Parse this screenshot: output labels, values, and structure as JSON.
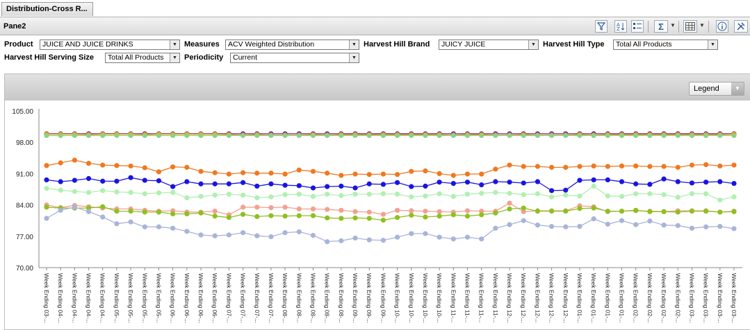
{
  "tab": {
    "title": "Distribution-Cross R..."
  },
  "pane": {
    "title": "Pane2",
    "toolbar": [
      "filter-icon",
      "sort-az-icon",
      "list-select-icon",
      "sum-icon",
      "grid-options-icon",
      "info-icon",
      "settings-tools-icon"
    ]
  },
  "filters": {
    "product": {
      "label": "Product",
      "value": "JUICE AND JUICE DRINKS"
    },
    "measures": {
      "label": "Measures",
      "value": "ACV Weighted Distribution"
    },
    "brand": {
      "label": "Harvest Hill Brand",
      "value": "JUICY JUICE"
    },
    "type": {
      "label": "Harvest Hill Type",
      "value": "Total All Products"
    },
    "serving": {
      "label": "Harvest Hill Serving Size",
      "value": "Total All Products"
    },
    "periodicity": {
      "label": "Periodicity",
      "value": "Current"
    }
  },
  "legend_button": {
    "label": "Legend"
  },
  "chart_data": {
    "type": "line",
    "ylim": [
      70,
      105
    ],
    "yticks": [
      "105.00",
      "98.00",
      "91.00",
      "84.00",
      "77.00",
      "70.00"
    ],
    "grid": false,
    "categories": [
      "Week Ending 03-...",
      "Week Ending 04-...",
      "Week Ending 04-...",
      "Week Ending 04-...",
      "Week Ending 04-...",
      "Week Ending 05-...",
      "Week Ending 05-...",
      "Week Ending 05-...",
      "Week Ending 05-...",
      "Week Ending 06-...",
      "Week Ending 06-...",
      "Week Ending 06-...",
      "Week Ending 06-...",
      "Week Ending 07-...",
      "Week Ending 07-...",
      "Week Ending 07-...",
      "Week Ending 07-...",
      "Week Ending 08-...",
      "Week Ending 08-...",
      "Week Ending 08-...",
      "Week Ending 08-...",
      "Week Ending 08-...",
      "Week Ending 09-...",
      "Week Ending 09-...",
      "Week Ending 09-...",
      "Week Ending 10-...",
      "Week Ending 10-...",
      "Week Ending 10-...",
      "Week Ending 10-...",
      "Week Ending 11-...",
      "Week Ending 11-...",
      "Week Ending 11-...",
      "Week Ending 11-...",
      "Week Ending 12-...",
      "Week Ending 12-...",
      "Week Ending 12-...",
      "Week Ending 12-...",
      "Week Ending 12-...",
      "Week Ending 01-...",
      "Week Ending 01-...",
      "Week Ending 01-...",
      "Week Ending 01-...",
      "Week Ending 02-...",
      "Week Ending 02-...",
      "Week Ending 02-...",
      "Week Ending 02-...",
      "Week Ending 03-...",
      "Week Ending 03-...",
      "Week Ending 03-...",
      "Week Ending 03-..."
    ],
    "series": [
      {
        "color": "#7a2a8a",
        "values": [
          99.9,
          99.9,
          99.9,
          99.9,
          99.9,
          99.9,
          99.9,
          99.9,
          99.9,
          99.9,
          99.9,
          99.9,
          99.9,
          99.9,
          99.9,
          99.9,
          99.9,
          99.9,
          99.9,
          99.9,
          99.9,
          99.9,
          99.9,
          99.9,
          99.9,
          99.9,
          99.9,
          99.9,
          99.9,
          99.9,
          99.9,
          99.9,
          99.9,
          99.9,
          99.9,
          99.9,
          99.9,
          99.9,
          99.9,
          99.9,
          99.9,
          99.9,
          99.9,
          99.9,
          99.9,
          99.9,
          99.9,
          99.9,
          99.9,
          99.9
        ]
      },
      {
        "color": "#e8a000",
        "values": [
          99.8,
          99.8,
          99.8,
          99.7,
          99.8,
          99.8,
          99.8,
          99.7,
          99.8,
          99.8,
          99.8,
          99.8,
          99.8,
          99.7,
          99.6,
          99.7,
          99.6,
          99.6,
          99.6,
          99.7,
          99.6,
          99.7,
          99.7,
          99.7,
          99.7,
          99.7,
          99.7,
          99.7,
          99.7,
          99.6,
          99.7,
          99.7,
          99.6,
          99.6,
          99.7,
          99.6,
          99.6,
          99.6,
          99.7,
          99.6,
          99.7,
          99.7,
          99.7,
          99.7,
          99.7,
          99.7,
          99.7,
          99.7,
          99.7,
          99.8
        ]
      },
      {
        "color": "#8bd08b",
        "values": [
          99.5,
          99.5,
          99.5,
          99.5,
          99.5,
          99.5,
          99.5,
          99.5,
          99.5,
          99.5,
          99.5,
          99.5,
          99.5,
          99.5,
          99.5,
          99.5,
          99.5,
          99.5,
          99.5,
          99.5,
          99.5,
          99.5,
          99.5,
          99.5,
          99.5,
          99.5,
          99.5,
          99.5,
          99.5,
          99.5,
          99.5,
          99.5,
          99.5,
          99.5,
          99.5,
          99.5,
          99.5,
          99.5,
          99.5,
          99.5,
          99.5,
          99.5,
          99.5,
          99.5,
          99.5,
          99.5,
          99.5,
          99.5,
          99.5,
          99.5
        ]
      },
      {
        "color": "#f07820",
        "values": [
          92.8,
          93.4,
          94.0,
          93.3,
          92.9,
          92.8,
          92.7,
          92.3,
          91.4,
          92.5,
          92.4,
          91.5,
          91.2,
          90.9,
          91.2,
          91.1,
          91.1,
          90.9,
          91.8,
          91.5,
          91.1,
          90.6,
          90.9,
          90.8,
          90.9,
          90.8,
          91.5,
          91.6,
          91.0,
          90.6,
          90.9,
          90.9,
          92.0,
          92.9,
          92.6,
          92.6,
          92.4,
          92.4,
          92.6,
          92.7,
          92.6,
          92.7,
          92.7,
          92.6,
          92.6,
          92.4,
          92.9,
          93.0,
          92.7,
          92.9
        ]
      },
      {
        "color": "#1a14e0",
        "values": [
          89.6,
          89.2,
          89.5,
          89.9,
          89.3,
          89.3,
          90.1,
          89.5,
          89.4,
          88.1,
          89.2,
          88.7,
          88.7,
          88.7,
          89.0,
          88.2,
          88.7,
          88.4,
          88.3,
          87.8,
          88.1,
          88.2,
          87.8,
          88.7,
          88.6,
          89.0,
          88.1,
          88.2,
          89.1,
          88.8,
          89.1,
          88.5,
          89.2,
          89.1,
          88.9,
          89.2,
          87.2,
          87.3,
          89.5,
          89.6,
          89.6,
          89.2,
          88.7,
          88.6,
          89.8,
          89.2,
          88.9,
          89.1,
          89.2,
          88.8
        ]
      },
      {
        "color": "#b0f0b0",
        "values": [
          87.7,
          87.3,
          87.0,
          86.8,
          87.2,
          86.9,
          86.8,
          86.5,
          86.7,
          86.8,
          85.6,
          85.9,
          86.2,
          86.4,
          86.2,
          85.6,
          85.8,
          86.3,
          86.4,
          85.9,
          86.4,
          86.1,
          86.4,
          86.4,
          86.5,
          86.4,
          85.8,
          86.0,
          86.5,
          85.9,
          86.4,
          86.6,
          86.8,
          86.6,
          86.3,
          86.5,
          85.8,
          86.2,
          86.0,
          88.2,
          86.0,
          85.9,
          86.5,
          86.5,
          86.3,
          85.7,
          86.5,
          86.5,
          85.1,
          85.8
        ]
      },
      {
        "color": "#f4a090",
        "values": [
          84.0,
          83.4,
          83.9,
          83.6,
          83.3,
          83.1,
          83.1,
          82.8,
          82.6,
          82.7,
          82.4,
          82.4,
          82.6,
          81.8,
          83.5,
          83.5,
          83.4,
          83.5,
          83.1,
          83.1,
          83.0,
          82.8,
          82.5,
          82.4,
          81.9,
          82.8,
          82.7,
          82.6,
          82.5,
          82.4,
          82.7,
          82.6,
          82.6,
          84.4,
          82.5,
          82.7,
          82.7,
          82.7,
          83.8,
          83.6,
          82.5,
          82.6,
          82.7,
          82.6,
          82.5,
          82.7,
          82.7,
          82.7,
          82.4,
          82.6
        ]
      },
      {
        "color": "#8dc020",
        "values": [
          83.5,
          83.3,
          83.3,
          83.3,
          83.6,
          82.6,
          82.6,
          82.4,
          82.4,
          82.0,
          82.0,
          82.2,
          81.5,
          81.2,
          81.9,
          81.4,
          81.6,
          81.5,
          81.6,
          81.6,
          81.1,
          81.0,
          81.1,
          81.0,
          80.6,
          81.2,
          81.7,
          81.3,
          81.5,
          81.8,
          81.5,
          81.8,
          82.2,
          83.1,
          83.3,
          82.6,
          82.6,
          82.6,
          83.2,
          83.3,
          82.6,
          82.6,
          82.8,
          82.5,
          82.5,
          82.4,
          82.6,
          82.6,
          82.4,
          82.5
        ]
      },
      {
        "color": "#a8b4d8",
        "values": [
          81.0,
          82.8,
          83.5,
          82.5,
          81.3,
          79.8,
          80.2,
          79.1,
          79.1,
          78.8,
          78.1,
          77.3,
          77.1,
          77.3,
          77.8,
          77.1,
          76.9,
          77.8,
          78.0,
          77.2,
          75.8,
          76.0,
          76.6,
          76.2,
          76.1,
          76.8,
          77.6,
          77.6,
          76.8,
          76.4,
          76.8,
          76.4,
          78.8,
          79.6,
          80.5,
          79.5,
          79.2,
          79.1,
          79.2,
          80.9,
          79.7,
          80.5,
          79.6,
          80.4,
          79.5,
          79.4,
          78.8,
          79.1,
          79.2,
          78.7
        ]
      }
    ]
  }
}
